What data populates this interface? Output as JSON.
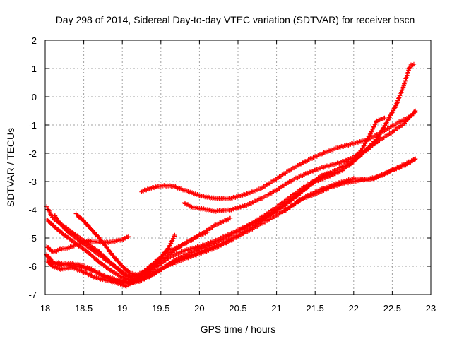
{
  "chart_data": {
    "type": "scatter",
    "title": "Day 298 of 2014, Sidereal Day-to-day VTEC variation (SDTVAR) for receiver bscn",
    "xlabel": "GPS time / hours",
    "ylabel": "SDTVAR / TECUs",
    "xlim": [
      18,
      23
    ],
    "ylim": [
      -7,
      2
    ],
    "xticks": [
      "18",
      "18.5",
      "19",
      "19.5",
      "20",
      "20.5",
      "21",
      "21.5",
      "22",
      "22.5",
      "23"
    ],
    "yticks": [
      "2",
      "1",
      "0",
      "-1",
      "-2",
      "-3",
      "-4",
      "-5",
      "-6",
      "-7"
    ],
    "grid": true,
    "marker": "+",
    "color": "#ff0000",
    "series": [
      {
        "name": "s1",
        "points": [
          [
            18.02,
            -3.9
          ],
          [
            18.1,
            -4.3
          ],
          [
            18.3,
            -4.7
          ],
          [
            18.5,
            -5.1
          ],
          [
            18.7,
            -5.5
          ],
          [
            18.9,
            -6.0
          ],
          [
            19.05,
            -6.35
          ],
          [
            19.2,
            -6.35
          ],
          [
            19.4,
            -6.0
          ],
          [
            19.6,
            -5.6
          ],
          [
            19.8,
            -5.2
          ],
          [
            20.0,
            -4.9
          ],
          [
            20.2,
            -4.55
          ],
          [
            20.4,
            -4.3
          ]
        ]
      },
      {
        "name": "s2",
        "points": [
          [
            18.02,
            -4.35
          ],
          [
            18.1,
            -4.55
          ],
          [
            18.25,
            -4.9
          ],
          [
            18.4,
            -5.2
          ],
          [
            18.55,
            -5.5
          ],
          [
            18.7,
            -5.85
          ],
          [
            18.85,
            -6.15
          ],
          [
            19.0,
            -6.4
          ],
          [
            19.1,
            -6.5
          ],
          [
            19.3,
            -6.4
          ],
          [
            19.5,
            -6.1
          ],
          [
            19.7,
            -5.8
          ],
          [
            19.9,
            -5.6
          ],
          [
            20.1,
            -5.4
          ],
          [
            20.3,
            -5.2
          ],
          [
            20.5,
            -4.9
          ],
          [
            20.7,
            -4.6
          ],
          [
            20.9,
            -4.2
          ],
          [
            21.1,
            -3.8
          ],
          [
            21.3,
            -3.4
          ],
          [
            21.5,
            -3.0
          ],
          [
            21.7,
            -2.8
          ],
          [
            21.85,
            -2.6
          ],
          [
            22.0,
            -2.3
          ],
          [
            22.15,
            -1.9
          ],
          [
            22.3,
            -1.5
          ],
          [
            22.45,
            -0.8
          ],
          [
            22.55,
            -0.3
          ],
          [
            22.65,
            0.4
          ],
          [
            22.73,
            1.1
          ],
          [
            22.78,
            1.15
          ]
        ]
      },
      {
        "name": "s3",
        "points": [
          [
            18.02,
            -5.3
          ],
          [
            18.1,
            -5.5
          ],
          [
            18.2,
            -5.4
          ],
          [
            18.3,
            -5.35
          ],
          [
            18.4,
            -5.25
          ],
          [
            18.55,
            -5.1
          ],
          [
            18.7,
            -5.15
          ],
          [
            18.85,
            -5.15
          ],
          [
            19.0,
            -5.05
          ],
          [
            19.08,
            -4.95
          ]
        ]
      },
      {
        "name": "s4",
        "points": [
          [
            18.02,
            -5.8
          ],
          [
            18.1,
            -6.0
          ],
          [
            18.2,
            -6.1
          ],
          [
            18.35,
            -6.05
          ],
          [
            18.5,
            -6.2
          ],
          [
            18.65,
            -6.4
          ],
          [
            18.8,
            -6.5
          ],
          [
            18.95,
            -6.6
          ],
          [
            19.05,
            -6.7
          ],
          [
            19.15,
            -6.55
          ],
          [
            19.3,
            -6.35
          ],
          [
            19.45,
            -6.0
          ],
          [
            19.6,
            -5.7
          ],
          [
            19.8,
            -5.45
          ],
          [
            20.0,
            -5.3
          ],
          [
            20.2,
            -5.1
          ],
          [
            20.4,
            -4.85
          ],
          [
            20.6,
            -4.6
          ],
          [
            20.8,
            -4.35
          ],
          [
            21.0,
            -4.05
          ],
          [
            21.2,
            -3.65
          ],
          [
            21.4,
            -3.2
          ],
          [
            21.55,
            -2.85
          ],
          [
            21.65,
            -2.7
          ],
          [
            21.75,
            -2.7
          ]
        ]
      },
      {
        "name": "s5",
        "points": [
          [
            18.02,
            -5.6
          ],
          [
            18.1,
            -5.9
          ],
          [
            18.2,
            -5.95
          ],
          [
            18.3,
            -5.9
          ],
          [
            18.45,
            -5.95
          ],
          [
            18.6,
            -6.1
          ],
          [
            18.75,
            -6.35
          ],
          [
            18.9,
            -6.45
          ],
          [
            19.05,
            -6.55
          ],
          [
            19.2,
            -6.5
          ],
          [
            19.35,
            -6.35
          ],
          [
            19.5,
            -6.1
          ],
          [
            19.7,
            -5.75
          ],
          [
            19.9,
            -5.5
          ],
          [
            20.1,
            -5.3
          ],
          [
            20.3,
            -5.05
          ],
          [
            20.5,
            -4.75
          ],
          [
            20.7,
            -4.45
          ],
          [
            20.9,
            -4.1
          ],
          [
            21.1,
            -3.7
          ],
          [
            21.3,
            -3.3
          ],
          [
            21.5,
            -2.95
          ],
          [
            21.7,
            -2.7
          ],
          [
            21.9,
            -2.4
          ],
          [
            22.1,
            -2.05
          ],
          [
            22.3,
            -1.6
          ],
          [
            22.5,
            -1.25
          ],
          [
            22.65,
            -0.95
          ],
          [
            22.8,
            -0.5
          ]
        ]
      },
      {
        "name": "s6",
        "points": [
          [
            18.02,
            -5.6
          ],
          [
            18.1,
            -5.85
          ],
          [
            18.3,
            -5.95
          ],
          [
            18.5,
            -6.05
          ],
          [
            18.7,
            -6.25
          ],
          [
            18.9,
            -6.5
          ],
          [
            19.05,
            -6.6
          ],
          [
            19.2,
            -6.55
          ],
          [
            19.4,
            -6.3
          ],
          [
            19.6,
            -5.95
          ],
          [
            19.8,
            -5.75
          ],
          [
            20.0,
            -5.55
          ],
          [
            20.2,
            -5.35
          ],
          [
            20.4,
            -5.1
          ],
          [
            20.6,
            -4.8
          ],
          [
            20.8,
            -4.5
          ],
          [
            21.0,
            -4.2
          ],
          [
            21.2,
            -3.85
          ],
          [
            21.4,
            -3.5
          ],
          [
            21.6,
            -3.25
          ],
          [
            21.8,
            -3.05
          ],
          [
            22.0,
            -2.9
          ],
          [
            22.2,
            -2.95
          ],
          [
            22.35,
            -2.8
          ],
          [
            22.5,
            -2.6
          ],
          [
            22.65,
            -2.45
          ],
          [
            22.8,
            -2.2
          ]
        ]
      },
      {
        "name": "s7",
        "points": [
          [
            18.12,
            -4.2
          ],
          [
            18.2,
            -4.5
          ],
          [
            18.3,
            -4.8
          ],
          [
            18.45,
            -5.1
          ],
          [
            18.6,
            -5.4
          ],
          [
            18.75,
            -5.7
          ],
          [
            18.9,
            -6.0
          ],
          [
            19.05,
            -6.3
          ],
          [
            19.15,
            -6.45
          ],
          [
            19.3,
            -6.3
          ],
          [
            19.45,
            -5.85
          ],
          [
            19.6,
            -5.35
          ],
          [
            19.68,
            -4.9
          ]
        ]
      },
      {
        "name": "s8",
        "points": [
          [
            18.4,
            -4.15
          ],
          [
            18.5,
            -4.4
          ],
          [
            18.6,
            -4.7
          ],
          [
            18.7,
            -5.0
          ],
          [
            18.8,
            -5.35
          ],
          [
            18.9,
            -5.7
          ],
          [
            19.0,
            -6.0
          ],
          [
            19.1,
            -6.25
          ],
          [
            19.2,
            -6.3
          ],
          [
            19.3,
            -6.15
          ],
          [
            19.4,
            -5.9
          ],
          [
            19.55,
            -5.55
          ],
          [
            19.7,
            -5.35
          ],
          [
            19.85,
            -5.15
          ],
          [
            20.0,
            -4.9
          ],
          [
            20.1,
            -4.8
          ]
        ]
      },
      {
        "name": "s9",
        "points": [
          [
            19.25,
            -3.35
          ],
          [
            19.35,
            -3.25
          ],
          [
            19.5,
            -3.15
          ],
          [
            19.65,
            -3.15
          ],
          [
            19.8,
            -3.3
          ],
          [
            20.0,
            -3.5
          ],
          [
            20.2,
            -3.6
          ],
          [
            20.4,
            -3.6
          ],
          [
            20.6,
            -3.45
          ],
          [
            20.8,
            -3.25
          ],
          [
            21.0,
            -2.9
          ],
          [
            21.2,
            -2.55
          ],
          [
            21.4,
            -2.25
          ],
          [
            21.6,
            -2.0
          ],
          [
            21.8,
            -1.8
          ],
          [
            22.0,
            -1.65
          ],
          [
            22.2,
            -1.5
          ],
          [
            22.4,
            -1.2
          ],
          [
            22.55,
            -0.95
          ],
          [
            22.7,
            -0.75
          ],
          [
            22.8,
            -0.55
          ]
        ]
      },
      {
        "name": "s10",
        "points": [
          [
            19.8,
            -3.75
          ],
          [
            19.9,
            -3.9
          ],
          [
            20.0,
            -3.95
          ],
          [
            20.2,
            -4.05
          ],
          [
            20.4,
            -4.0
          ],
          [
            20.6,
            -3.85
          ],
          [
            20.8,
            -3.6
          ],
          [
            21.0,
            -3.3
          ],
          [
            21.2,
            -2.95
          ],
          [
            21.4,
            -2.7
          ],
          [
            21.6,
            -2.5
          ],
          [
            21.8,
            -2.35
          ],
          [
            22.0,
            -2.15
          ],
          [
            22.1,
            -1.9
          ],
          [
            22.2,
            -1.4
          ],
          [
            22.3,
            -0.85
          ],
          [
            22.4,
            -0.75
          ]
        ]
      },
      {
        "name": "s11",
        "points": [
          [
            21.1,
            -4.05
          ],
          [
            21.2,
            -3.85
          ],
          [
            21.3,
            -3.65
          ],
          [
            21.5,
            -3.45
          ],
          [
            21.7,
            -3.2
          ],
          [
            21.9,
            -3.05
          ],
          [
            22.1,
            -2.95
          ],
          [
            22.3,
            -2.85
          ],
          [
            22.5,
            -2.6
          ],
          [
            22.65,
            -2.4
          ],
          [
            22.8,
            -2.2
          ]
        ]
      }
    ]
  }
}
